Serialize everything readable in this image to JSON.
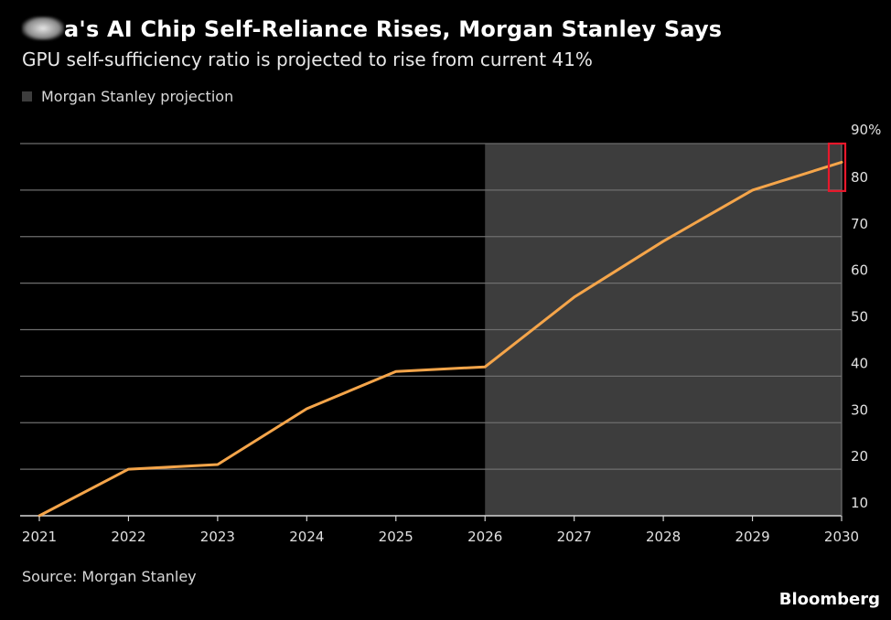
{
  "header": {
    "title_text": "a's AI Chip Self-Reliance Rises, Morgan Stanley Says",
    "subtitle": "GPU self-sufficiency ratio is projected to rise from current 41%"
  },
  "legend": {
    "label": "Morgan Stanley projection"
  },
  "footer": {
    "source": "Source: Morgan Stanley",
    "brand": "Bloomberg"
  },
  "colors": {
    "background": "#000000",
    "projection_shade": "#3d3d3d",
    "line": "#f5a54a",
    "grid": "#6e6e6e",
    "highlight_box": "#e8182b"
  },
  "chart_data": {
    "type": "line",
    "title": "",
    "xlabel": "",
    "ylabel": "",
    "x": [
      2021,
      2022,
      2023,
      2024,
      2025,
      2026,
      2027,
      2028,
      2029,
      2030
    ],
    "series": [
      {
        "values": [
          10,
          20,
          21,
          33,
          41,
          42,
          57,
          69,
          80,
          86
        ]
      }
    ],
    "projection_range": [
      2026,
      2030
    ],
    "xlim": [
      2021,
      2030
    ],
    "ylim": [
      10,
      90
    ],
    "x_ticks": [
      "2021",
      "2022",
      "2023",
      "2024",
      "2025",
      "2026",
      "2027",
      "2028",
      "2029",
      "2030"
    ],
    "y_ticks": [
      "10",
      "20",
      "30",
      "40",
      "50",
      "60",
      "70",
      "80",
      "90%"
    ],
    "grid": true,
    "y_axis_position": "right",
    "highlight_year": 2030
  }
}
